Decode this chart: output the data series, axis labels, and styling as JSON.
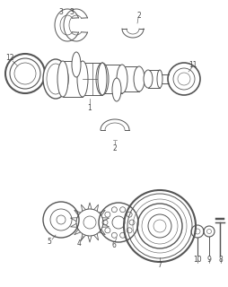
{
  "bg_color": "#ffffff",
  "line_color": "#555555",
  "text_color": "#444444",
  "lw": 0.7,
  "fig_w": 2.54,
  "fig_h": 3.2,
  "dpi": 100
}
